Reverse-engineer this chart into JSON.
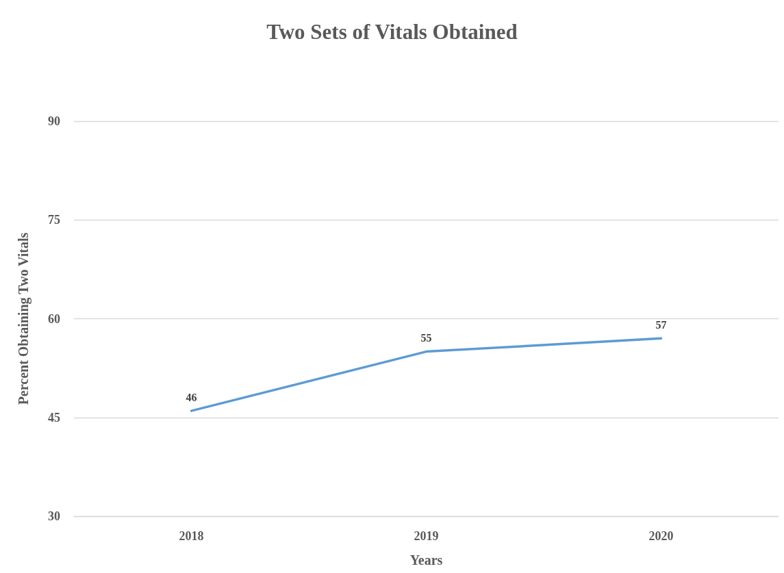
{
  "chart_data": {
    "type": "line",
    "title": "Two Sets of Vitals Obtained",
    "xlabel": "Years",
    "ylabel": "Percent Obtaining Two Vitals",
    "categories": [
      "2018",
      "2019",
      "2020"
    ],
    "series": [
      {
        "color": "#5b9bd5",
        "values": [
          46,
          55,
          57
        ]
      }
    ],
    "ylim": [
      30,
      90
    ],
    "yticks": [
      30,
      45,
      60,
      75,
      90
    ],
    "grid": "y",
    "data_labels": true,
    "marker": "none",
    "line_style": "solid"
  }
}
